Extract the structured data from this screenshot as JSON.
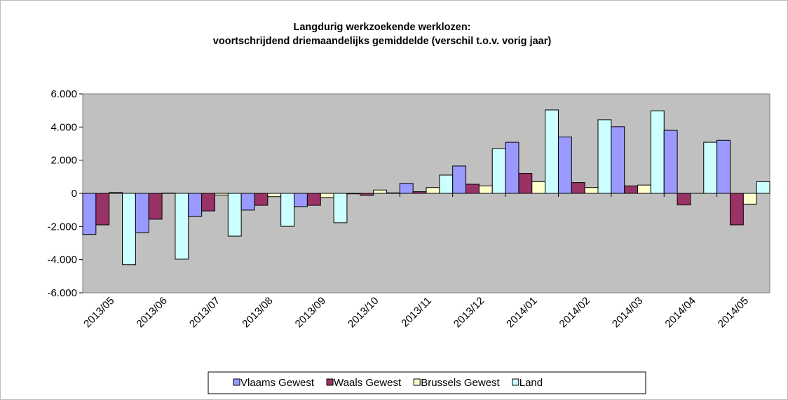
{
  "chart_data": {
    "type": "bar",
    "title": [
      "Langdurig werkzoekende werklozen:",
      "voortschrijdend driemaandelijks gemiddelde (verschil t.o.v. vorig jaar)"
    ],
    "categories": [
      "2013/05",
      "2013/06",
      "2013/07",
      "2013/08",
      "2013/09",
      "2013/10",
      "2013/11",
      "2013/12",
      "2014/01",
      "2014/02",
      "2014/03",
      "2014/04",
      "2014/05"
    ],
    "series": [
      {
        "name": "Vlaams Gewest",
        "color": "#9999ff",
        "values": [
          -2480,
          -2370,
          -1400,
          -1010,
          -800,
          -30,
          600,
          1650,
          3080,
          3400,
          4020,
          3800,
          3200
        ]
      },
      {
        "name": "Waals Gewest",
        "color": "#993366",
        "values": [
          -1900,
          -1560,
          -1060,
          -720,
          -720,
          -120,
          100,
          550,
          1200,
          650,
          450,
          -700,
          -1900
        ]
      },
      {
        "name": "Brussels Gewest",
        "color": "#ffffcc",
        "values": [
          50,
          20,
          -100,
          -200,
          -250,
          200,
          350,
          450,
          700,
          350,
          500,
          0,
          -650
        ]
      },
      {
        "name": "Land",
        "color": "#ccffff",
        "values": [
          -4300,
          -3970,
          -2580,
          -1990,
          -1770,
          30,
          1100,
          2700,
          5030,
          4440,
          4980,
          3080,
          700
        ]
      }
    ],
    "ylim": [
      -6000,
      6000
    ],
    "yticks": [
      {
        "value": -6000,
        "label": "-6.000"
      },
      {
        "value": -4000,
        "label": "-4.000"
      },
      {
        "value": -2000,
        "label": "-2.000"
      },
      0,
      {
        "value": 2000,
        "label": "2.000"
      },
      {
        "value": 4000,
        "label": "4.000"
      },
      {
        "value": 6000,
        "label": "6.000"
      }
    ],
    "plot_background": "#c0c0c0"
  }
}
